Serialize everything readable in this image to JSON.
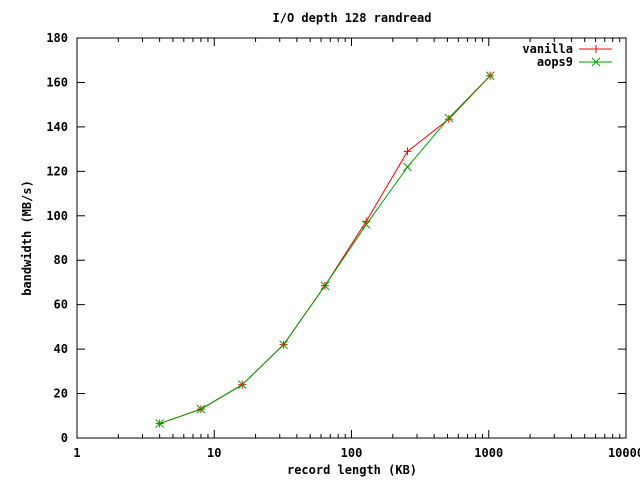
{
  "chart_data": {
    "type": "line",
    "title": "I/O depth 128 randread",
    "xlabel": "record length (KB)",
    "ylabel": "bandwidth (MB/s)",
    "xscale": "log",
    "xlim": [
      1,
      10000
    ],
    "ylim": [
      0,
      180
    ],
    "xticks": [
      1,
      10,
      100,
      1000,
      10000
    ],
    "xtick_labels": [
      "1",
      "10",
      "100",
      "1000",
      "10000"
    ],
    "yticks": [
      0,
      20,
      40,
      60,
      80,
      100,
      120,
      140,
      160,
      180
    ],
    "ytick_labels": [
      "0",
      "20",
      "40",
      "60",
      "80",
      "100",
      "120",
      "140",
      "160",
      "180"
    ],
    "legend_position": "top-right",
    "grid": false,
    "x": [
      4,
      8,
      16,
      32,
      64,
      128,
      256,
      512,
      1024
    ],
    "series": [
      {
        "name": "vanilla",
        "color": "#ff0000",
        "marker": "plus",
        "values": [
          6.5,
          13,
          24,
          42,
          68.5,
          97.5,
          129,
          143.5,
          163
        ]
      },
      {
        "name": "aops9",
        "color": "#00a000",
        "marker": "cross",
        "values": [
          6.5,
          13,
          24,
          42,
          68.5,
          96,
          122,
          144,
          163
        ]
      }
    ]
  }
}
